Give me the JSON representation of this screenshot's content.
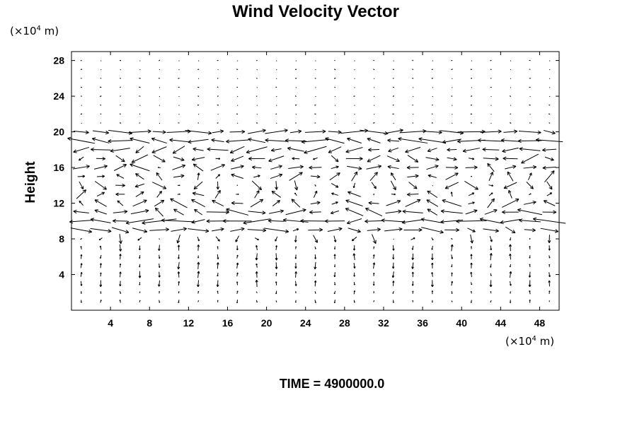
{
  "chart_data": {
    "type": "vector_field",
    "title": "Wind Velocity Vector",
    "ylabel": "Height",
    "xlabel": "",
    "x_units": "(×10⁴ m)",
    "y_units": "(×10⁴ m)",
    "units_base": "(×10",
    "units_exp": "4",
    "units_tail": " m)",
    "xlim": [
      0,
      50
    ],
    "ylim": [
      0,
      29
    ],
    "xticks": [
      4,
      8,
      12,
      16,
      20,
      24,
      28,
      32,
      36,
      40,
      44,
      48
    ],
    "xtick_labels": [
      "4",
      "8",
      "12",
      "16",
      "20",
      "24",
      "28",
      "32",
      "36",
      "40",
      "44",
      "48"
    ],
    "yticks": [
      4,
      8,
      12,
      16,
      20,
      24,
      28
    ],
    "ytick_labels": [
      "4",
      "8",
      "12",
      "16",
      "20",
      "24",
      "28"
    ],
    "grid_x_step": 2,
    "grid_y_step": 1,
    "vectors_note_levels": [
      {
        "y": 20,
        "u": 1.5,
        "v": 0.0
      },
      {
        "y": 19,
        "u": -1.8,
        "v": 0.1
      },
      {
        "y": 18,
        "u": -1.2,
        "v": -0.2
      },
      {
        "y": 17,
        "u": 0.8,
        "v": -0.3
      },
      {
        "y": 16,
        "u": 1.0,
        "v": 0.3
      },
      {
        "y": 15,
        "u": 0.6,
        "v": 0.4
      },
      {
        "y": 14,
        "u": 0.6,
        "v": -0.3
      },
      {
        "y": 13,
        "u": 0.5,
        "v": 0.3
      },
      {
        "y": 12,
        "u": -0.9,
        "v": 0.4
      },
      {
        "y": 11,
        "u": -1.2,
        "v": 0.3
      },
      {
        "y": 10,
        "u": -1.8,
        "v": 0.0
      },
      {
        "y": 9,
        "u": 1.2,
        "v": -0.1
      },
      {
        "y": 8,
        "u": 0.0,
        "v": -0.4
      }
    ],
    "time_label": "TIME = 4900000.0"
  }
}
